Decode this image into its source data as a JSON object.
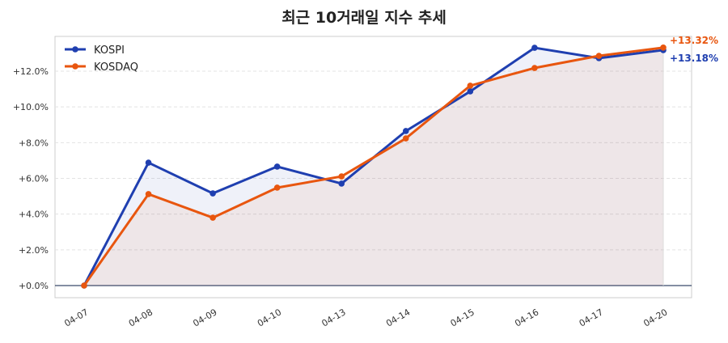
{
  "chart_data": {
    "type": "line",
    "title": "최근 10거래일 지수 추세",
    "categories": [
      "04-07",
      "04-08",
      "04-09",
      "04-10",
      "04-13",
      "04-14",
      "04-15",
      "04-16",
      "04-17",
      "04-20"
    ],
    "series": [
      {
        "name": "KOSPI",
        "color": "#1f3fb0",
        "values": [
          0,
          6.88,
          5.16,
          6.66,
          5.71,
          8.65,
          10.87,
          13.31,
          12.73,
          13.18
        ],
        "end_label": "+13.18%"
      },
      {
        "name": "KOSDAQ",
        "color": "#e8560f",
        "values": [
          0,
          5.12,
          3.8,
          5.48,
          6.11,
          8.24,
          11.19,
          12.18,
          12.86,
          13.32
        ],
        "end_label": "+13.32%"
      }
    ],
    "yticks": [
      "+0.0%",
      "+2.0%",
      "+4.0%",
      "+6.0%",
      "+8.0%",
      "+10.0%",
      "+12.0%"
    ],
    "ytick_values": [
      0,
      2,
      4,
      6,
      8,
      10,
      12
    ],
    "ylim": [
      -0.6,
      14.1
    ],
    "xlabel": "",
    "ylabel": "",
    "grid": true,
    "legend": "top-left"
  }
}
